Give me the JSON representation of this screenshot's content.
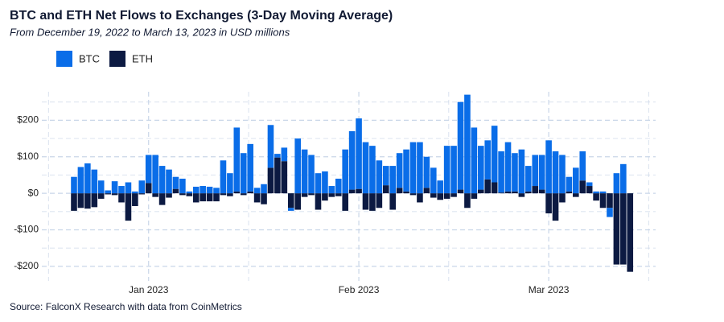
{
  "chart_data": {
    "type": "bar",
    "stacked": true,
    "title": "BTC and ETH Net Flows to Exchanges (3-Day Moving Average)",
    "subtitle": "From December 19, 2022 to March 13, 2023 in USD millions",
    "source": "Source: FalconX Research with data from CoinMetrics",
    "categories": [
      null,
      null,
      null,
      null,
      null,
      null,
      null,
      null,
      null,
      null,
      null,
      "Jan 2023",
      null,
      null,
      null,
      null,
      null,
      null,
      null,
      null,
      null,
      null,
      null,
      null,
      null,
      null,
      null,
      null,
      null,
      null,
      null,
      null,
      null,
      null,
      null,
      null,
      null,
      null,
      null,
      null,
      null,
      null,
      "Feb 2023",
      null,
      null,
      null,
      null,
      null,
      null,
      null,
      null,
      null,
      null,
      null,
      null,
      null,
      null,
      null,
      null,
      null,
      null,
      null,
      null,
      null,
      null,
      null,
      null,
      null,
      null,
      null,
      "Mar 2023",
      null,
      null,
      null,
      null,
      null,
      null,
      null,
      null,
      null,
      null,
      null,
      null
    ],
    "series": [
      {
        "name": "BTC",
        "color": "#0a6de8",
        "values": [
          45,
          72,
          82,
          65,
          35,
          8,
          33,
          20,
          30,
          5,
          35,
          77,
          105,
          75,
          65,
          33,
          40,
          5,
          18,
          20,
          18,
          15,
          90,
          55,
          175,
          110,
          130,
          15,
          25,
          117,
          10,
          37,
          -8,
          150,
          120,
          105,
          55,
          60,
          20,
          40,
          120,
          160,
          193,
          140,
          130,
          90,
          53,
          75,
          95,
          115,
          140,
          140,
          85,
          70,
          35,
          130,
          130,
          240,
          270,
          180,
          120,
          107,
          155,
          113,
          135,
          105,
          120,
          70,
          85,
          95,
          145,
          115,
          105,
          40,
          70,
          80,
          10,
          5,
          5,
          -25,
          55,
          80,
          0
        ]
      },
      {
        "name": "ETH",
        "color": "#0c1a42",
        "values": [
          -48,
          -40,
          -42,
          -38,
          -15,
          -3,
          -5,
          -25,
          -75,
          -35,
          -3,
          28,
          -10,
          -32,
          -12,
          12,
          -5,
          -8,
          -25,
          -22,
          -22,
          -22,
          -5,
          -8,
          5,
          -5,
          5,
          -25,
          -30,
          70,
          98,
          88,
          -40,
          -45,
          -10,
          -5,
          -45,
          -20,
          -10,
          -8,
          -48,
          10,
          12,
          -45,
          -48,
          -40,
          22,
          -45,
          15,
          5,
          -5,
          -25,
          15,
          -12,
          -18,
          -15,
          -10,
          10,
          -40,
          -15,
          10,
          38,
          30,
          2,
          5,
          5,
          -10,
          5,
          20,
          10,
          -55,
          -75,
          -25,
          5,
          -10,
          35,
          20,
          -20,
          -40,
          -40,
          -195,
          -195,
          -215
        ]
      }
    ],
    "ylim": [
      -240,
      300
    ],
    "yticks": [
      {
        "value": -200,
        "label": "-$200"
      },
      {
        "value": -100,
        "label": "-$100"
      },
      {
        "value": 0,
        "label": "$0"
      },
      {
        "value": 100,
        "label": "$100"
      },
      {
        "value": 200,
        "label": "$200"
      }
    ],
    "grid": true,
    "legend": "top-left"
  }
}
